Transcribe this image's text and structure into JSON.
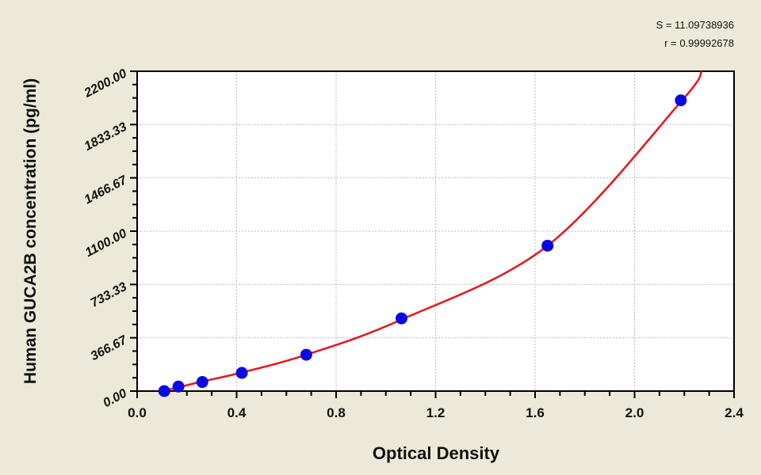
{
  "stats": {
    "s": "S = 11.09738936",
    "r": "r = 0.99992678"
  },
  "chart_data": {
    "type": "scatter",
    "title": "",
    "xlabel": "Optical Density",
    "ylabel": "Human GUCA2B concentration (pg/ml)",
    "xlim": [
      0,
      2.4
    ],
    "ylim": [
      0,
      2200
    ],
    "xticks": [
      "0.0",
      "0.4",
      "0.8",
      "1.2",
      "1.6",
      "2.0",
      "2.4"
    ],
    "yticks": [
      "0.00",
      "366.67",
      "733.33",
      "1100.00",
      "1466.67",
      "1833.33",
      "2200.00"
    ],
    "grid": true,
    "colors": {
      "points": "#0A0AE0",
      "curve": "#E8141E"
    },
    "points": {
      "x": [
        0.109,
        0.166,
        0.262,
        0.421,
        0.68,
        1.063,
        1.65,
        2.186
      ],
      "y": [
        0,
        31.25,
        62.5,
        125,
        250,
        500,
        1000,
        2000
      ]
    },
    "fit_curve": {
      "x": [
        0.1,
        0.109,
        0.166,
        0.262,
        0.421,
        0.68,
        1.063,
        1.65,
        2.186,
        2.27
      ],
      "y": [
        -5,
        3,
        26,
        66,
        128,
        250,
        492,
        1000,
        1990,
        2200
      ]
    }
  }
}
